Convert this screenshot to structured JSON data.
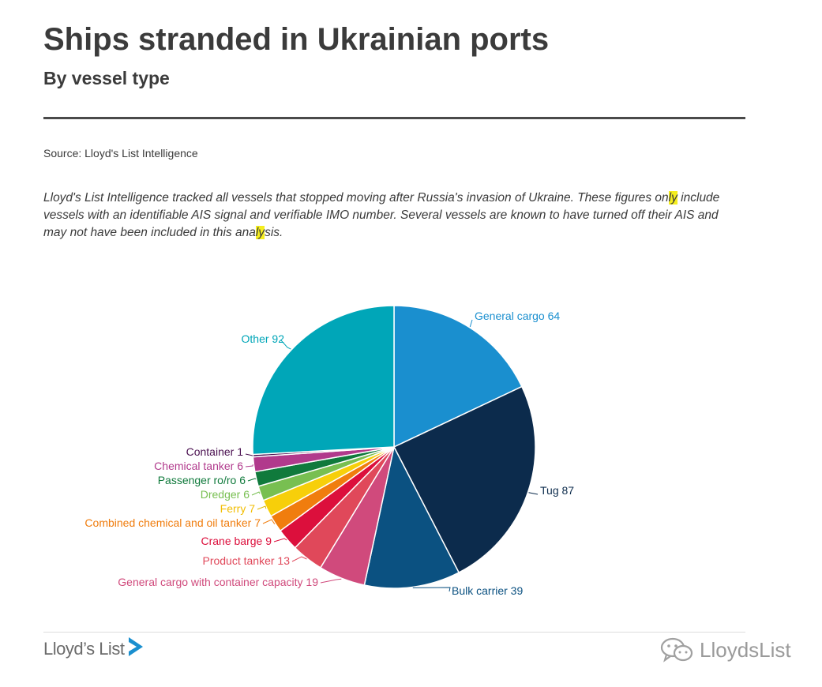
{
  "header": {
    "title": "Ships stranded in Ukrainian ports",
    "subtitle": "By vessel type"
  },
  "source": "Source: Lloyd's List Intelligence",
  "note": {
    "part1": "Lloyd's List Intelligence tracked all vessels that stopped moving after Russia's invasion of Ukraine. These figures on",
    "hl1": "ly",
    "part2": " include vessels with an identifiable AIS signal and verifiable IMO number. Several vessels are known to have turned off their AIS and may not have been included in this ana",
    "hl2": "ly",
    "part3": "sis."
  },
  "footer": {
    "brand": "Lloyd’s List",
    "wechat": "LloydsList"
  },
  "chart_data": {
    "type": "pie",
    "title": "Ships stranded in Ukrainian ports",
    "subtitle": "By vessel type",
    "slices": [
      {
        "label": "General cargo",
        "value": 64,
        "color": "#1a8fcf"
      },
      {
        "label": "Tug",
        "value": 87,
        "color": "#0c2b4c"
      },
      {
        "label": "Bulk carrier",
        "value": 39,
        "color": "#0b5181"
      },
      {
        "label": "General cargo with container capacity",
        "value": 19,
        "color": "#d04a7c"
      },
      {
        "label": "Product tanker",
        "value": 13,
        "color": "#e0485a"
      },
      {
        "label": "Crane barge",
        "value": 9,
        "color": "#dc0f3c"
      },
      {
        "label": "Combined chemical and oil tanker",
        "value": 7,
        "color": "#f07d0e"
      },
      {
        "label": "Ferry",
        "value": 7,
        "color": "#f7cf0a"
      },
      {
        "label": "Dredger",
        "value": 6,
        "color": "#78bf51"
      },
      {
        "label": "Passenger ro/ro",
        "value": 6,
        "color": "#107a3c"
      },
      {
        "label": "Chemical tanker",
        "value": 6,
        "color": "#b13a8c"
      },
      {
        "label": "Container",
        "value": 1,
        "color": "#4a1050"
      },
      {
        "label": "Other",
        "value": 92,
        "color": "#00a6b8"
      }
    ]
  }
}
